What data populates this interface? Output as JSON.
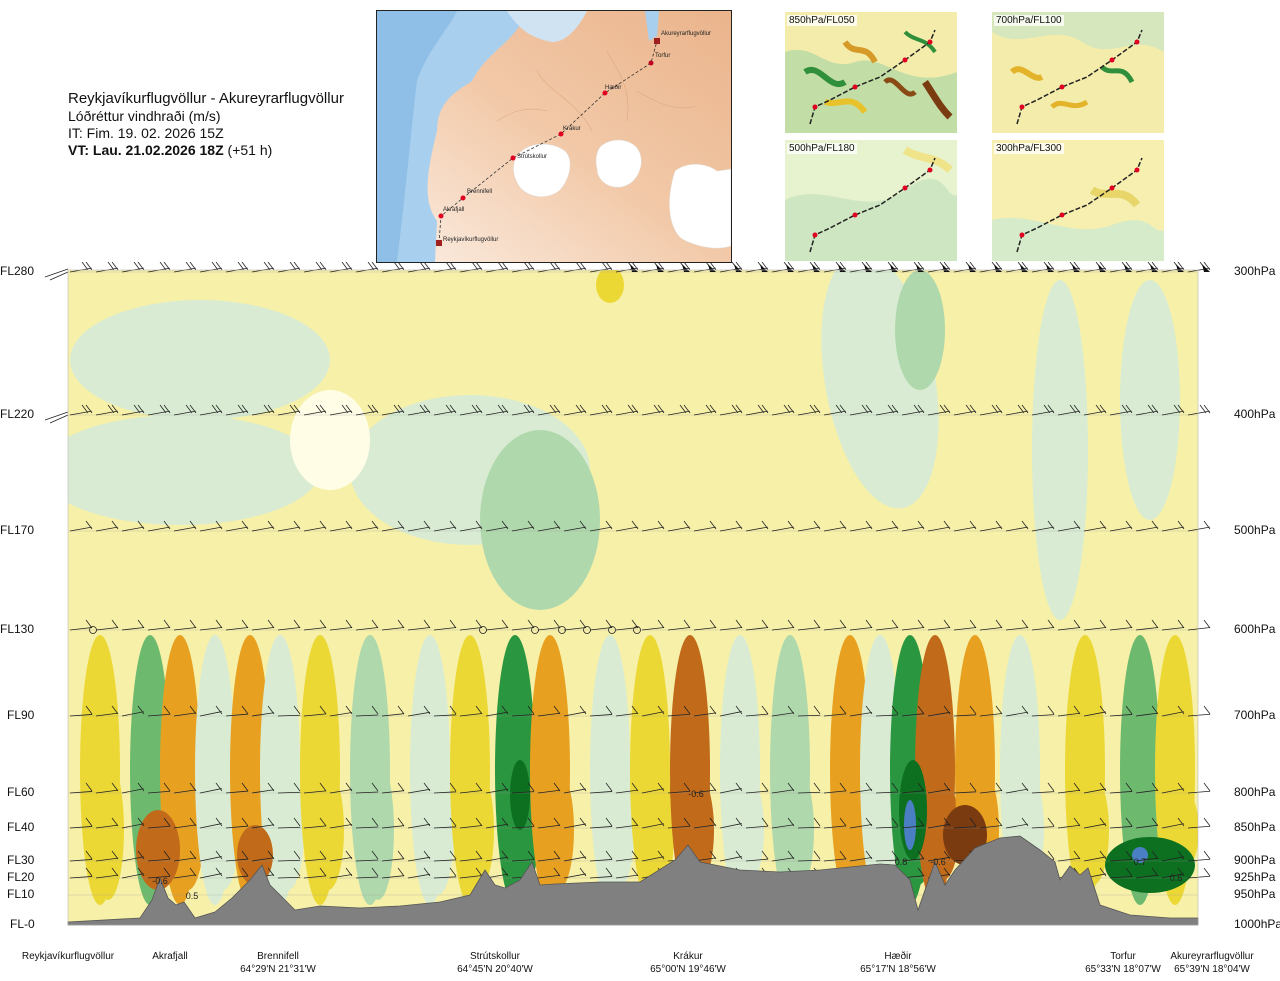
{
  "header": {
    "route": "Reykjavíkurflugvöllur - Akureyrarflugvöllur",
    "variable": "Lóðréttur vindhraði (m/s)",
    "it": "IT: Fim. 19. 02. 2026 15Z",
    "vt_bold": "VT: Lau. 21.02.2026 18Z",
    "vt_suffix": "(+51 h)"
  },
  "map": {
    "places": [
      {
        "name": "Akureyrarflugvöllur"
      },
      {
        "name": "Torfur"
      },
      {
        "name": "Hæðir"
      },
      {
        "name": "Krákur"
      },
      {
        "name": "Strútskollur"
      },
      {
        "name": "Brennifell"
      },
      {
        "name": "Akrafjall"
      },
      {
        "name": "Reykjavíkurflugvöllur"
      }
    ]
  },
  "mini_maps": [
    {
      "label": "850hPa/FL050"
    },
    {
      "label": "700hPa/FL100"
    },
    {
      "label": "500hPa/FL180"
    },
    {
      "label": "300hPa/FL300"
    }
  ],
  "chart_data": {
    "type": "heatmap",
    "title": "Lóðréttur vindhraði (m/s)",
    "xlabel": "",
    "ylabel": "",
    "flight_levels": [
      "FL280",
      "FL220",
      "FL170",
      "FL130",
      "FL90",
      "FL60",
      "FL40",
      "FL30",
      "FL20",
      "FL10",
      "FL-0"
    ],
    "pressure_levels": [
      "300hPa",
      "400hPa",
      "500hPa",
      "600hPa",
      "700hPa",
      "800hPa",
      "850hPa",
      "900hPa",
      "925hPa",
      "950hPa",
      "1000hPa"
    ],
    "stations": [
      {
        "name": "Reykjavíkurflugvöllur",
        "coord": ""
      },
      {
        "name": "Akrafjall",
        "coord": ""
      },
      {
        "name": "Brennifell",
        "coord": "64°29'N 21°31'W"
      },
      {
        "name": "Strútskollur",
        "coord": "64°45'N 20°40'W"
      },
      {
        "name": "Krákur",
        "coord": "65°00'N 19°46'W"
      },
      {
        "name": "Hæðir",
        "coord": "65°17'N 18°56'W"
      },
      {
        "name": "Torfur",
        "coord": "65°33'N 18°07'W"
      },
      {
        "name": "Akureyrarflugvöllur",
        "coord": "65°39'N 18°04'W"
      }
    ],
    "annotations": [
      "-0.6",
      "0.5",
      "-0.6",
      "0.8",
      "-0.6",
      "0.7",
      "0.6"
    ],
    "colors": {
      "strong_down": "#7a3b10",
      "down_2": "#c06a1a",
      "down_3": "#e8a020",
      "down_4": "#ecd835",
      "weak_down": "#f6f0a8",
      "neutral": "#fffde6",
      "weak_up": "#d9ecd3",
      "up_2": "#b0d8ad",
      "up_3": "#6dba6f",
      "up_4": "#2b9640",
      "strong_up": "#0c7020",
      "max_up": "#4a7fc4",
      "terrain": "#808080"
    }
  }
}
